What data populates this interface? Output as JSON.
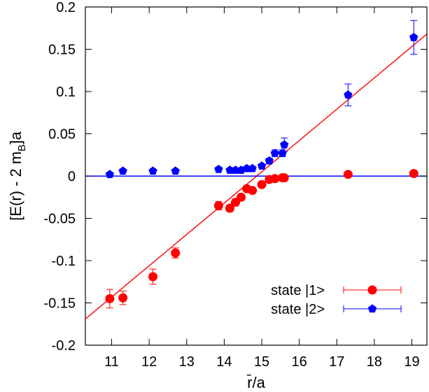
{
  "chart_data": {
    "type": "scatter",
    "title": "",
    "xlabel": "r̄/a",
    "ylabel": "[E(r) - 2 mB]a",
    "ylabel_parts": {
      "main": "[E(r) - 2 m",
      "sub": "B",
      "tail": "]a"
    },
    "xlim": [
      10.3,
      19.4
    ],
    "ylim": [
      -0.2,
      0.2
    ],
    "xticks": [
      11,
      12,
      13,
      14,
      15,
      16,
      17,
      18,
      19
    ],
    "yticks": [
      -0.2,
      -0.15,
      -0.1,
      -0.05,
      0,
      0.05,
      0.1,
      0.15,
      0.2
    ],
    "xtick_labels": [
      "11",
      "12",
      "13",
      "14",
      "15",
      "16",
      "17",
      "18",
      "19"
    ],
    "ytick_labels": [
      "-0.2",
      "-0.15",
      "-0.1",
      "-0.05",
      "0",
      "0.05",
      "0.1",
      "0.15",
      "0.2"
    ],
    "grid": false,
    "legend_position": "bottom-right",
    "series": [
      {
        "name": "state |1>",
        "color": "#ff0000",
        "marker": "circle",
        "points": [
          {
            "x": 10.95,
            "y": -0.145,
            "err": 0.011
          },
          {
            "x": 11.3,
            "y": -0.144,
            "err": 0.008
          },
          {
            "x": 12.1,
            "y": -0.119,
            "err": 0.009
          },
          {
            "x": 12.7,
            "y": -0.091,
            "err": 0.006
          },
          {
            "x": 13.85,
            "y": -0.035,
            "err": 0.005
          },
          {
            "x": 14.15,
            "y": -0.038,
            "err": 0.004
          },
          {
            "x": 14.3,
            "y": -0.031,
            "err": 0.004
          },
          {
            "x": 14.45,
            "y": -0.025,
            "err": 0.003
          },
          {
            "x": 14.6,
            "y": -0.015,
            "err": 0.003
          },
          {
            "x": 14.75,
            "y": -0.017,
            "err": 0.003
          },
          {
            "x": 15.0,
            "y": -0.01,
            "err": 0.003
          },
          {
            "x": 15.2,
            "y": -0.004,
            "err": 0.002
          },
          {
            "x": 15.35,
            "y": -0.003,
            "err": 0.002
          },
          {
            "x": 15.55,
            "y": -0.002,
            "err": 0.002
          },
          {
            "x": 15.6,
            "y": -0.002,
            "err": 0.002
          },
          {
            "x": 17.3,
            "y": 0.002,
            "err": 0.001
          },
          {
            "x": 19.05,
            "y": 0.003,
            "err": 0.001
          }
        ]
      },
      {
        "name": "state |2>",
        "color": "#0000ff",
        "marker": "pentagon",
        "points": [
          {
            "x": 10.95,
            "y": 0.002,
            "err": 0.001
          },
          {
            "x": 11.3,
            "y": 0.006,
            "err": 0.001
          },
          {
            "x": 12.1,
            "y": 0.006,
            "err": 0.001
          },
          {
            "x": 12.7,
            "y": 0.006,
            "err": 0.001
          },
          {
            "x": 13.85,
            "y": 0.008,
            "err": 0.001
          },
          {
            "x": 14.15,
            "y": 0.007,
            "err": 0.001
          },
          {
            "x": 14.3,
            "y": 0.007,
            "err": 0.001
          },
          {
            "x": 14.45,
            "y": 0.007,
            "err": 0.001
          },
          {
            "x": 14.6,
            "y": 0.009,
            "err": 0.001
          },
          {
            "x": 14.75,
            "y": 0.009,
            "err": 0.001
          },
          {
            "x": 15.0,
            "y": 0.012,
            "err": 0.002
          },
          {
            "x": 15.2,
            "y": 0.018,
            "err": 0.003
          },
          {
            "x": 15.35,
            "y": 0.027,
            "err": 0.004
          },
          {
            "x": 15.55,
            "y": 0.027,
            "err": 0.004
          },
          {
            "x": 15.6,
            "y": 0.037,
            "err": 0.008
          },
          {
            "x": 17.3,
            "y": 0.096,
            "err": 0.013
          },
          {
            "x": 19.05,
            "y": 0.164,
            "err": 0.02
          }
        ]
      }
    ],
    "fit_lines": [
      {
        "color": "#ff0000",
        "x": [
          10.3,
          19.4
        ],
        "y": [
          -0.169,
          0.168
        ]
      },
      {
        "color": "#0000ff",
        "x": [
          10.3,
          19.4
        ],
        "y": [
          0.0,
          0.0
        ]
      }
    ]
  }
}
